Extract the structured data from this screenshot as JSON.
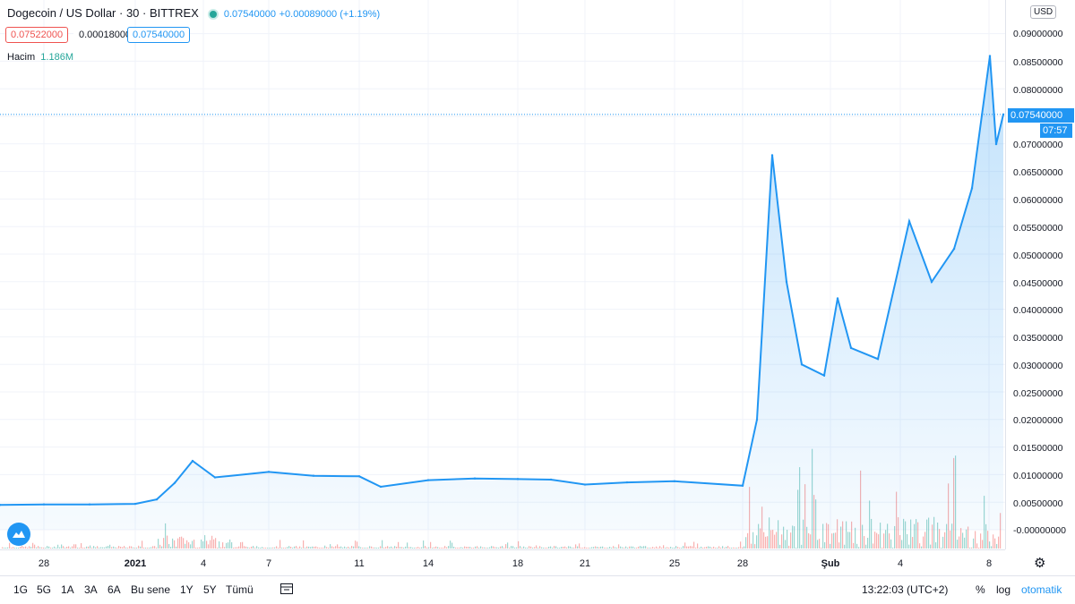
{
  "header": {
    "symbol": "Dogecoin / US Dollar · 30 · BITTREX",
    "last_price": "0.07540000",
    "change": "+0.00089000 (+1.19%)",
    "bid": "0.07522000",
    "spread": "0.00018000",
    "ask": "0.07540000",
    "volume_label": "Hacim",
    "volume_value": "1.186M"
  },
  "price_axis": {
    "currency": "USD",
    "ticks": [
      "0.09000000",
      "0.08500000",
      "0.08000000",
      "0.07000000",
      "0.06500000",
      "0.06000000",
      "0.05500000",
      "0.05000000",
      "0.04500000",
      "0.04000000",
      "0.03500000",
      "0.03000000",
      "0.02500000",
      "0.02000000",
      "0.01500000",
      "0.01000000",
      "0.00500000",
      "-0.00000000"
    ],
    "current_price_label": "0.07540000",
    "countdown": "07:57"
  },
  "time_axis": {
    "ticks": [
      "28",
      "2021",
      "4",
      "7",
      "11",
      "14",
      "18",
      "21",
      "25",
      "28",
      "Şub",
      "4",
      "8"
    ]
  },
  "bottom_bar": {
    "ranges": [
      "1G",
      "5G",
      "1A",
      "3A",
      "6A",
      "Bu sene",
      "1Y",
      "5Y",
      "Tümü"
    ],
    "clock": "13:22:03 (UTC+2)",
    "percent": "%",
    "log": "log",
    "auto": "otomatik"
  },
  "colors": {
    "line": "#2196f3",
    "up": "#26a69a",
    "down": "#ef5350"
  },
  "chart_data": {
    "type": "area",
    "title": "Dogecoin / US Dollar · 30 · BITTREX",
    "xlabel": "",
    "ylabel": "",
    "x": [
      "Dec 26",
      "Dec 28",
      "Dec 30",
      "Jan 1",
      "Jan 2",
      "Jan 3",
      "Jan 4",
      "Jan 5",
      "Jan 7",
      "Jan 9",
      "Jan 11",
      "Jan 12",
      "Jan 14",
      "Jan 16",
      "Jan 18",
      "Jan 20",
      "Jan 22",
      "Jan 24",
      "Jan 26",
      "Jan 28",
      "Jan 28.5",
      "Jan 29",
      "Jan 29.5",
      "Jan 30",
      "Jan 31",
      "Feb 1",
      "Feb 2",
      "Feb 3",
      "Feb 4",
      "Feb 5",
      "Feb 6",
      "Feb 7",
      "Feb 7.5",
      "Feb 8",
      "Feb 8.5"
    ],
    "series": [
      {
        "values": [
          0.0045,
          0.0046,
          0.0046,
          0.0047,
          0.0055,
          0.0085,
          0.0125,
          0.0095,
          0.0105,
          0.0098,
          0.0097,
          0.0078,
          0.009,
          0.0093,
          0.0092,
          0.0091,
          0.0082,
          0.0086,
          0.0088,
          0.008,
          0.02,
          0.068,
          0.045,
          0.03,
          0.028,
          0.042,
          0.033,
          0.031,
          0.056,
          0.045,
          0.051,
          0.062,
          0.086,
          0.07,
          0.0754
        ]
      }
    ],
    "ylim": [
      0,
      0.095
    ],
    "grid": true,
    "legend": "top-left"
  }
}
